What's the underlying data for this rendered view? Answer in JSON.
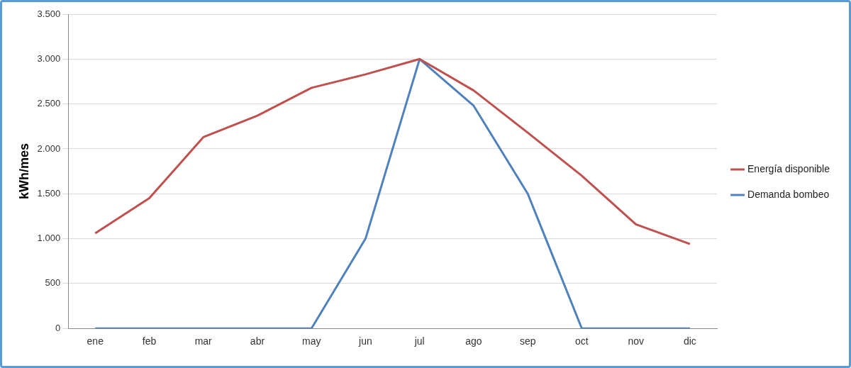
{
  "chart_data": {
    "type": "line",
    "ylabel": "kWh/mes",
    "categories": [
      "ene",
      "feb",
      "mar",
      "abr",
      "may",
      "jun",
      "jul",
      "ago",
      "sep",
      "oct",
      "nov",
      "dic"
    ],
    "series": [
      {
        "name": "Energía disponible",
        "color": "#c0504d",
        "values": [
          1060,
          1450,
          2130,
          2370,
          2680,
          2830,
          3000,
          2650,
          2180,
          1700,
          1160,
          940
        ]
      },
      {
        "name": "Demanda bombeo",
        "color": "#4f81bd",
        "values": [
          0,
          0,
          0,
          0,
          0,
          1000,
          3000,
          2480,
          1500,
          0,
          0,
          0
        ]
      }
    ],
    "ylim": [
      0,
      3500
    ],
    "yticks": [
      {
        "value": 0,
        "label": "0"
      },
      {
        "value": 500,
        "label": "500"
      },
      {
        "value": 1000,
        "label": "1.000"
      },
      {
        "value": 1500,
        "label": "1.500"
      },
      {
        "value": 2000,
        "label": "2.000"
      },
      {
        "value": 2500,
        "label": "2.500"
      },
      {
        "value": 3000,
        "label": "3.000"
      },
      {
        "value": 3500,
        "label": "3.500"
      }
    ],
    "grid": "y",
    "legend": "right",
    "marker": "none",
    "line_style": "solid"
  }
}
